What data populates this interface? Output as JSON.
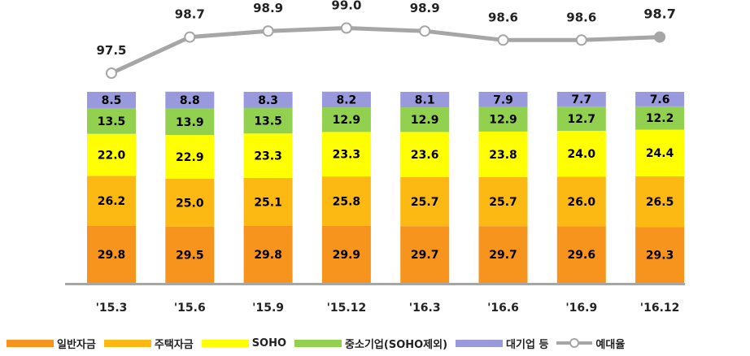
{
  "chart_data": {
    "type": "bar",
    "stacked": true,
    "categories": [
      "'15.3",
      "'15.6",
      "'15.9",
      "'15.12",
      "'16.3",
      "'16.6",
      "'16.9",
      "'16.12"
    ],
    "series": [
      {
        "name": "일반자금",
        "color": "#f7941d",
        "values": [
          29.8,
          29.5,
          29.8,
          29.9,
          29.7,
          29.7,
          29.6,
          29.3
        ]
      },
      {
        "name": "주택자금",
        "color": "#fdb913",
        "values": [
          26.2,
          25.0,
          25.1,
          25.8,
          25.7,
          25.7,
          26.0,
          26.5
        ]
      },
      {
        "name": "SOHO",
        "color": "#ffff00",
        "values": [
          22.0,
          22.9,
          23.3,
          23.3,
          23.6,
          23.8,
          24.0,
          24.4
        ]
      },
      {
        "name": "중소기업(SOHO제외)",
        "color": "#92d050",
        "values": [
          13.5,
          13.9,
          13.5,
          12.9,
          12.9,
          12.9,
          12.7,
          12.2
        ]
      },
      {
        "name": "대기업 등",
        "color": "#9999dd",
        "values": [
          8.5,
          8.8,
          8.3,
          8.2,
          8.1,
          7.9,
          7.7,
          7.6
        ]
      }
    ],
    "line": {
      "name": "예대율",
      "color": "#a6a6a6",
      "values": [
        97.5,
        98.7,
        98.9,
        99.0,
        98.9,
        98.6,
        98.6,
        98.7
      ],
      "labels": [
        "97.5",
        "98.7",
        "98.9",
        "99.0",
        "98.9",
        "98.6",
        "98.6",
        "98.7"
      ]
    },
    "ylim": [
      0,
      100
    ],
    "legend_position": "bottom"
  }
}
